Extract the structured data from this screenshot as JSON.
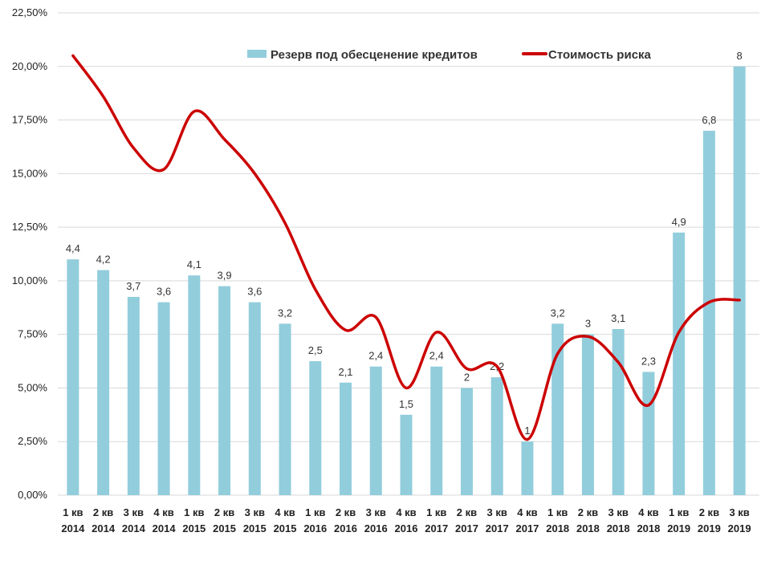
{
  "chart_data": {
    "type": "bar",
    "title": "",
    "categories": [
      [
        "1 кв",
        "2014"
      ],
      [
        "2 кв",
        "2014"
      ],
      [
        "3 кв",
        "2014"
      ],
      [
        "4 кв",
        "2014"
      ],
      [
        "1 кв",
        "2015"
      ],
      [
        "2 кв",
        "2015"
      ],
      [
        "3 кв",
        "2015"
      ],
      [
        "4 кв",
        "2015"
      ],
      [
        "1 кв",
        "2016"
      ],
      [
        "2 кв",
        "2016"
      ],
      [
        "3 кв",
        "2016"
      ],
      [
        "4 кв",
        "2016"
      ],
      [
        "1 кв",
        "2017"
      ],
      [
        "2 кв",
        "2017"
      ],
      [
        "3 кв",
        "2017"
      ],
      [
        "4 кв",
        "2017"
      ],
      [
        "1 кв",
        "2018"
      ],
      [
        "2 кв",
        "2018"
      ],
      [
        "3 кв",
        "2018"
      ],
      [
        "4 кв",
        "2018"
      ],
      [
        "1 кв",
        "2019"
      ],
      [
        "2 кв",
        "2019"
      ],
      [
        "3 кв",
        "2019"
      ]
    ],
    "y_axis": {
      "min": 0,
      "max": 22.5,
      "ticks": [
        "0,00%",
        "2,50%",
        "5,00%",
        "7,50%",
        "10,00%",
        "12,50%",
        "15,00%",
        "17,50%",
        "20,00%",
        "22,50%"
      ]
    },
    "bar_scale_factor": 2.5,
    "series": [
      {
        "name": "Резерв под обесценение кредитов",
        "type": "bar",
        "color": "#92cddc",
        "values": [
          4.4,
          4.2,
          3.7,
          3.6,
          4.1,
          3.9,
          3.6,
          3.2,
          2.5,
          2.1,
          2.4,
          1.5,
          2.4,
          2,
          2.2,
          1,
          3.2,
          3,
          3.1,
          2.3,
          4.9,
          6.8,
          8
        ],
        "labels": [
          "4,4",
          "4,2",
          "3,7",
          "3,6",
          "4,1",
          "3,9",
          "3,6",
          "3,2",
          "2,5",
          "2,1",
          "2,4",
          "1,5",
          "2,4",
          "2",
          "2,2",
          "1",
          "3,2",
          "3",
          "3,1",
          "2,3",
          "4,9",
          "6,8",
          "8"
        ]
      },
      {
        "name": "Стоимость риска",
        "type": "line",
        "smooth": true,
        "color": "#cc0000",
        "values": [
          20.5,
          18.6,
          16.2,
          15.2,
          17.9,
          16.6,
          15.0,
          12.7,
          9.6,
          7.7,
          8.3,
          5.0,
          7.6,
          5.9,
          6.0,
          2.6,
          6.6,
          7.4,
          6.2,
          4.2,
          7.6,
          9.0,
          9.1
        ]
      }
    ],
    "legend": {
      "position": "top-center"
    }
  }
}
